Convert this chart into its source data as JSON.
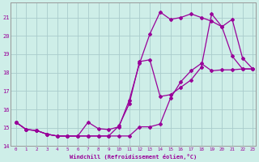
{
  "xlabel": "Windchill (Refroidissement éolien,°C)",
  "bg_color": "#ceeee8",
  "line_color": "#990099",
  "grid_color": "#aacccc",
  "x_min": -0.5,
  "x_max": 23.3,
  "y_min": 14.0,
  "y_max": 21.8,
  "yticks": [
    14,
    15,
    16,
    17,
    18,
    19,
    20,
    21
  ],
  "xticks": [
    0,
    1,
    2,
    3,
    4,
    5,
    6,
    7,
    8,
    9,
    10,
    11,
    12,
    13,
    14,
    15,
    16,
    17,
    18,
    19,
    20,
    21,
    22,
    23
  ],
  "series1_x": [
    0,
    1,
    2,
    3,
    4,
    5,
    6,
    7,
    8,
    9,
    10,
    11,
    12,
    13,
    14,
    15,
    16,
    17,
    18,
    19,
    20,
    21,
    22,
    23
  ],
  "series1_y": [
    15.3,
    14.9,
    14.85,
    14.65,
    14.55,
    14.55,
    14.55,
    14.55,
    14.55,
    14.55,
    14.55,
    14.55,
    15.05,
    15.05,
    15.2,
    16.6,
    17.5,
    18.1,
    18.5,
    18.1,
    18.15,
    18.15,
    18.2,
    18.2
  ],
  "series2_x": [
    0,
    1,
    2,
    3,
    4,
    5,
    6,
    7,
    8,
    9,
    10,
    11,
    12,
    13,
    14,
    15,
    16,
    17,
    18,
    19,
    20,
    21,
    22,
    23
  ],
  "series2_y": [
    15.3,
    14.9,
    14.85,
    14.65,
    14.55,
    14.55,
    14.55,
    15.3,
    14.95,
    14.9,
    15.05,
    16.5,
    18.5,
    20.1,
    21.3,
    20.9,
    21.0,
    21.2,
    21.0,
    20.8,
    20.5,
    18.9,
    18.2,
    18.2
  ],
  "series3_x": [
    0,
    1,
    2,
    3,
    4,
    5,
    6,
    7,
    8,
    9,
    10,
    11,
    12,
    13,
    14,
    15,
    16,
    17,
    18,
    19,
    20,
    21,
    22,
    23
  ],
  "series3_y": [
    15.3,
    14.9,
    14.85,
    14.65,
    14.55,
    14.55,
    14.55,
    14.55,
    14.55,
    14.55,
    15.1,
    16.3,
    18.6,
    18.7,
    16.7,
    16.8,
    17.2,
    17.6,
    18.3,
    21.2,
    20.5,
    20.9,
    18.8,
    18.2
  ],
  "marker": "D",
  "markersize": 2.0,
  "linewidth": 0.9
}
